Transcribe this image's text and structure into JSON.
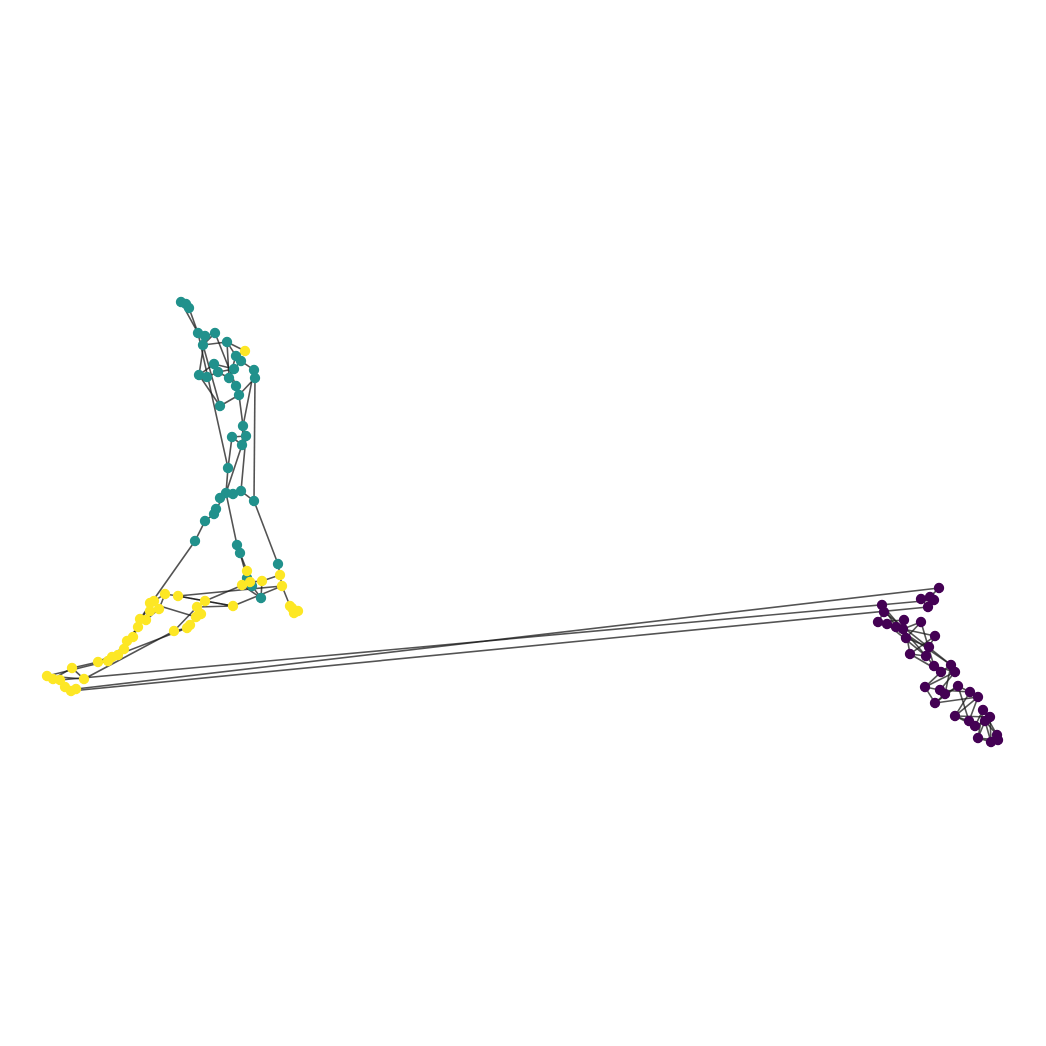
{
  "diagram": {
    "type": "network-graph",
    "background": "#ffffff",
    "edge_color": "#1a1a1a",
    "communities": [
      {
        "id": 0,
        "color": "#440154"
      },
      {
        "id": 1,
        "color": "#21918c"
      },
      {
        "id": 2,
        "color": "#fde725"
      }
    ]
  }
}
